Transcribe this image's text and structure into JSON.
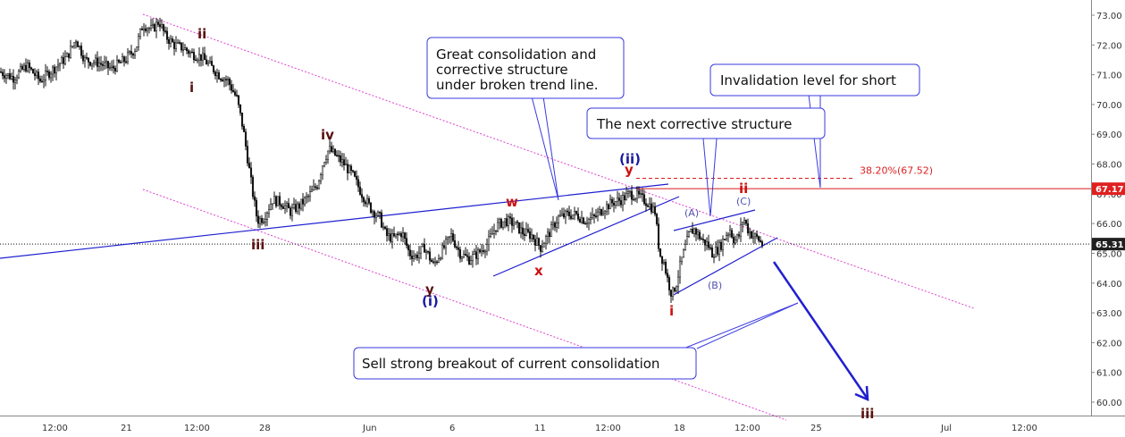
{
  "chart_data": {
    "type": "candlestick",
    "y_axis": {
      "range": [
        59.6,
        73.3
      ],
      "ticks": [
        "73.00",
        "72.00",
        "71.00",
        "70.00",
        "69.00",
        "68.00",
        "67.00",
        "66.00",
        "65.00",
        "64.00",
        "63.00",
        "62.00",
        "61.00",
        "60.00"
      ],
      "tick_values": [
        73,
        72,
        71,
        70,
        69,
        68,
        67,
        66,
        65,
        64,
        63,
        62,
        61,
        60
      ],
      "current_price": "65.31",
      "level_label": "67.17",
      "level_value": 67.17
    },
    "x_axis": {
      "ticks": [
        "12:00",
        "21",
        "12:00",
        "28",
        "Jun",
        "6",
        "11",
        "12:00",
        "18",
        "12:00",
        "25",
        "Jul",
        "12:00"
      ]
    },
    "price_path": [
      [
        0,
        71.1
      ],
      [
        15,
        70.9
      ],
      [
        30,
        71.3
      ],
      [
        45,
        70.8
      ],
      [
        60,
        71.2
      ],
      [
        75,
        71.6
      ],
      [
        85,
        72.2
      ],
      [
        95,
        71.5
      ],
      [
        110,
        71.4
      ],
      [
        125,
        71.2
      ],
      [
        140,
        71.5
      ],
      [
        152,
        71.9
      ],
      [
        160,
        72.7
      ],
      [
        170,
        72.5
      ],
      [
        178,
        72.8
      ],
      [
        185,
        72.3
      ],
      [
        195,
        72.0
      ],
      [
        205,
        71.9
      ],
      [
        215,
        71.7
      ],
      [
        225,
        71.6
      ],
      [
        235,
        71.3
      ],
      [
        245,
        71.0
      ],
      [
        255,
        70.8
      ],
      [
        265,
        70.2
      ],
      [
        272,
        69.2
      ],
      [
        278,
        68.0
      ],
      [
        283,
        67.0
      ],
      [
        288,
        66.1
      ],
      [
        295,
        66.2
      ],
      [
        305,
        66.8
      ],
      [
        315,
        66.7
      ],
      [
        325,
        66.4
      ],
      [
        335,
        66.6
      ],
      [
        345,
        66.9
      ],
      [
        355,
        67.3
      ],
      [
        362,
        68.1
      ],
      [
        368,
        68.5
      ],
      [
        375,
        68.3
      ],
      [
        385,
        68.0
      ],
      [
        395,
        67.6
      ],
      [
        405,
        67.0
      ],
      [
        415,
        66.5
      ],
      [
        425,
        66.2
      ],
      [
        432,
        65.6
      ],
      [
        440,
        65.5
      ],
      [
        450,
        65.7
      ],
      [
        458,
        65.0
      ],
      [
        465,
        64.9
      ],
      [
        475,
        65.2
      ],
      [
        485,
        64.6
      ],
      [
        495,
        65.1
      ],
      [
        505,
        65.6
      ],
      [
        515,
        65.0
      ],
      [
        525,
        64.8
      ],
      [
        535,
        65.0
      ],
      [
        545,
        65.3
      ],
      [
        555,
        65.9
      ],
      [
        565,
        66.1
      ],
      [
        575,
        66.0
      ],
      [
        585,
        65.7
      ],
      [
        595,
        65.6
      ],
      [
        605,
        65.2
      ],
      [
        615,
        65.7
      ],
      [
        625,
        66.2
      ],
      [
        635,
        66.3
      ],
      [
        645,
        66.3
      ],
      [
        655,
        66.1
      ],
      [
        665,
        66.2
      ],
      [
        675,
        66.5
      ],
      [
        685,
        66.7
      ],
      [
        695,
        66.8
      ],
      [
        705,
        67.0
      ],
      [
        715,
        66.9
      ],
      [
        725,
        66.7
      ],
      [
        733,
        66.4
      ],
      [
        738,
        65.0
      ],
      [
        743,
        64.7
      ],
      [
        748,
        64.0
      ],
      [
        752,
        63.6
      ],
      [
        757,
        64.0
      ],
      [
        762,
        64.7
      ],
      [
        767,
        65.2
      ],
      [
        772,
        65.7
      ],
      [
        777,
        65.8
      ],
      [
        782,
        65.6
      ],
      [
        787,
        65.4
      ],
      [
        792,
        65.3
      ],
      [
        797,
        65.0
      ],
      [
        802,
        65.1
      ],
      [
        807,
        65.3
      ],
      [
        812,
        65.6
      ],
      [
        817,
        65.8
      ],
      [
        822,
        65.4
      ],
      [
        827,
        65.6
      ],
      [
        832,
        66.2
      ],
      [
        837,
        65.8
      ],
      [
        842,
        65.6
      ],
      [
        848,
        65.5
      ],
      [
        853,
        65.3
      ]
    ],
    "annotations": {
      "callout_consolidation": [
        "Great consolidation and",
        "corrective structure",
        "under broken trend line."
      ],
      "callout_invalidation": "Invalidation level for short",
      "callout_next": "The next corrective structure",
      "callout_sell": "Sell strong breakout of current consolidation",
      "fib_label": "38.20%(67.52)",
      "fib_value": 67.52
    },
    "wave_labels": {
      "ii_top": "ii",
      "i_top": "i",
      "iv": "iv",
      "iii_low": "iii",
      "y_low": "y",
      "i_paren_low": "(i)",
      "w": "w",
      "x": "x",
      "ii_paren": "(ii)",
      "y_top": "y",
      "i_red": "i",
      "a_paren": "(A)",
      "b_paren": "(B)",
      "c_paren": "(C)",
      "ii_red": "ii",
      "iii_red": "iii"
    },
    "colors": {
      "channel": "#e040d0",
      "trendline": "#1f1fd0",
      "arrow": "#1f1fd0",
      "level": "#d81b1b",
      "price_tag_bg": "#202020",
      "level_tag_bg": "#e02020",
      "candle": "#111111"
    }
  }
}
